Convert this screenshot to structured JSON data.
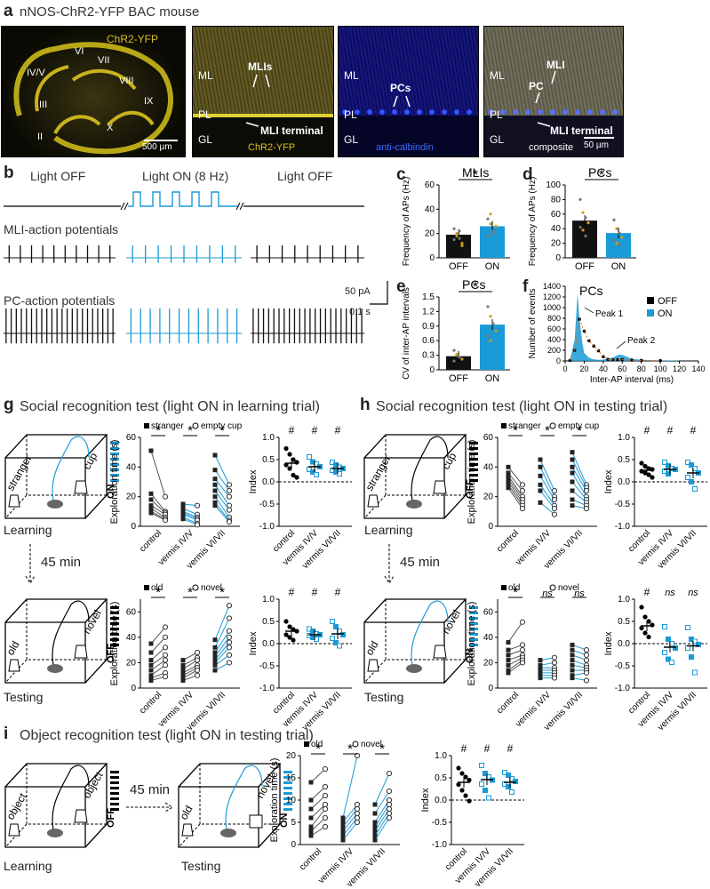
{
  "panel_a": {
    "label": "a",
    "title": "nNOS-ChR2-YFP BAC mouse",
    "sagittal": {
      "channel": "ChR2-YFP",
      "lobules": [
        "VI",
        "VII",
        "IV/V",
        "VIII",
        "III",
        "IX",
        "II",
        "X"
      ],
      "scale": "500 µm"
    },
    "layers": [
      "ML",
      "PL",
      "GL"
    ],
    "img1": {
      "arrow1": "MLIs",
      "arrow2": "MLI terminal",
      "channel": "ChR2-YFP"
    },
    "img2": {
      "arrow1": "PCs",
      "channel": "anti-calbindin"
    },
    "img3": {
      "arrow1": "MLI",
      "arrow2": "PC",
      "arrow3": "MLI terminal",
      "channel": "composite",
      "scale": "50 µm"
    },
    "colors": {
      "yfp": "#c8b418",
      "calbindin": "#2233ee"
    }
  },
  "panel_b": {
    "label": "b",
    "light_off_1": "Light OFF",
    "light_on": "Light ON (8 Hz)",
    "light_off_2": "Light OFF",
    "trace1": "MLI-action potentials",
    "trace2": "PC-action potentials",
    "scale_y": "50 pA",
    "scale_x": "0.1 s"
  },
  "panel_c": {
    "label": "c",
    "title": "MLIs",
    "ylabel": "Frequency of APs (Hz)",
    "sig": "*"
  },
  "panel_d": {
    "label": "d",
    "title": "PCs",
    "ylabel": "Frequency of APs (Hz)",
    "sig": "*"
  },
  "panel_e": {
    "label": "e",
    "title": "PCs",
    "ylabel": "CV of inter-AP intervals",
    "sig": "*"
  },
  "panel_f": {
    "label": "f",
    "title": "PCs",
    "ylabel": "Number of events",
    "xlabel": "Inter-AP interval (ms)",
    "legend": [
      "OFF",
      "ON"
    ],
    "peak1": "Peak 1",
    "peak2": "Peak 2"
  },
  "panel_g": {
    "label": "g",
    "title": "Social recognition test (light ON in learning trial)",
    "learning": "Learning",
    "testing": "Testing",
    "delay": "45 min",
    "stranger": "stranger",
    "cup": "cup",
    "old": "old",
    "novel": "novel",
    "on": "ON",
    "off": "OFF"
  },
  "panel_h": {
    "label": "h",
    "title": "Social recognition test (light ON in testing trial)",
    "learning": "Learning",
    "testing": "Testing",
    "delay": "45 min",
    "stranger": "stranger",
    "cup": "cup",
    "old": "old",
    "novel": "novel",
    "on": "ON",
    "off": "OFF"
  },
  "panel_i": {
    "label": "i",
    "title": "Object recognition test (light ON in testing trial)",
    "learning": "Learning",
    "testing": "Testing",
    "delay": "45 min",
    "object1": "object",
    "object2": "object",
    "old": "old",
    "novel": "novel",
    "on": "ON",
    "off": "OFF"
  },
  "legends": {
    "stranger_leg": "stranger",
    "cup_leg": "empty cup",
    "old_leg": "old",
    "novel_leg": "novel"
  },
  "axis_text": {
    "expl": "Exploration time (s)",
    "index": "Index",
    "groups": [
      "control",
      "vermis IV/V",
      "vermis VI/VII"
    ],
    "cond": [
      "OFF",
      "ON"
    ]
  },
  "chart_data": [
    {
      "id": "c",
      "type": "bar",
      "title": "MLIs",
      "categories": [
        "OFF",
        "ON"
      ],
      "values": [
        19,
        26
      ],
      "ylabel": "Frequency of APs (Hz)",
      "ylim": [
        0,
        60
      ],
      "yticks": [
        0,
        20,
        40,
        60
      ]
    },
    {
      "id": "d",
      "type": "bar",
      "title": "PCs",
      "categories": [
        "OFF",
        "ON"
      ],
      "values": [
        51,
        34
      ],
      "ylabel": "Frequency of APs (Hz)",
      "ylim": [
        0,
        100
      ],
      "yticks": [
        0,
        20,
        40,
        60,
        80,
        100
      ]
    },
    {
      "id": "e",
      "type": "bar",
      "title": "PCs",
      "categories": [
        "OFF",
        "ON"
      ],
      "values": [
        0.28,
        0.93
      ],
      "ylabel": "CV of inter-AP intervals",
      "ylim": [
        0,
        1.5
      ],
      "yticks": [
        0,
        0.3,
        0.6,
        0.9,
        1.2,
        1.5
      ]
    },
    {
      "id": "f",
      "type": "line",
      "title": "PCs",
      "xlabel": "Inter-AP interval (ms)",
      "ylabel": "Number of events",
      "xlim": [
        0,
        140
      ],
      "ylim": [
        0,
        1400
      ],
      "xticks": [
        0,
        20,
        40,
        60,
        80,
        100,
        120,
        140
      ],
      "yticks": [
        0,
        200,
        400,
        600,
        800,
        1000,
        1200,
        1400
      ],
      "series": [
        {
          "name": "OFF",
          "x": [
            5,
            10,
            15,
            20,
            25,
            30,
            35,
            40,
            45,
            50,
            55,
            60,
            70,
            80,
            100
          ],
          "y": [
            10,
            200,
            780,
            560,
            380,
            280,
            190,
            80,
            30,
            20,
            20,
            25,
            15,
            10,
            5
          ]
        },
        {
          "name": "ON",
          "x": [
            5,
            10,
            13,
            15,
            18,
            20,
            25,
            30,
            35,
            40,
            50,
            55,
            58,
            62,
            70,
            80,
            100,
            120
          ],
          "y": [
            20,
            400,
            1260,
            800,
            350,
            150,
            60,
            30,
            20,
            25,
            60,
            110,
            120,
            100,
            40,
            20,
            10,
            5
          ]
        }
      ]
    },
    {
      "id": "g_top_expl",
      "type": "scatter",
      "ylabel": "Exploration time (s)",
      "ylim": [
        0,
        60
      ],
      "groups": [
        "control",
        "vermis IV/V",
        "vermis VI/VII"
      ],
      "legend": [
        "stranger",
        "empty cup"
      ],
      "sig": [
        "*",
        "*",
        "*"
      ],
      "series": [
        {
          "name": "stranger",
          "values": [
            [
              51,
              22,
              18,
              14,
              12,
              10,
              9
            ],
            [
              15,
              12,
              10,
              9,
              8,
              6,
              5
            ],
            [
              48,
              38,
              32,
              28,
              24,
              20,
              16,
              14
            ]
          ]
        },
        {
          "name": "empty cup",
          "values": [
            [
              20,
              10,
              9,
              8,
              6,
              5,
              4
            ],
            [
              14,
              8,
              6,
              5,
              4,
              2,
              1
            ],
            [
              28,
              24,
              20,
              14,
              11,
              6,
              4,
              3
            ]
          ]
        }
      ]
    },
    {
      "id": "g_top_index",
      "type": "scatter",
      "ylabel": "Index",
      "ylim": [
        -1,
        1
      ],
      "groups": [
        "control",
        "vermis IV/V",
        "vermis VI/VII"
      ],
      "means": [
        0.42,
        0.34,
        0.3
      ],
      "sig": [
        "#",
        "#",
        "#"
      ],
      "values": [
        [
          0.75,
          0.62,
          0.5,
          0.44,
          0.38,
          0.3,
          0.15,
          0.1
        ],
        [
          0.56,
          0.45,
          0.4,
          0.34,
          0.28,
          0.22,
          0.16
        ],
        [
          0.44,
          0.38,
          0.33,
          0.3,
          0.26,
          0.22,
          0.18
        ]
      ]
    },
    {
      "id": "g_bot_expl",
      "type": "scatter",
      "ylabel": "Exploration time (s)",
      "ylim": [
        0,
        70
      ],
      "groups": [
        "control",
        "vermis IV/V",
        "vermis VI/VII"
      ],
      "legend": [
        "old",
        "novel"
      ],
      "sig": [
        "*",
        "*",
        "*"
      ],
      "series": [
        {
          "name": "old",
          "values": [
            [
              35,
              28,
              22,
              18,
              14,
              10,
              8,
              6
            ],
            [
              22,
              18,
              15,
              12,
              10,
              8,
              6
            ],
            [
              38,
              32,
              28,
              25,
              22,
              20,
              18,
              14
            ]
          ]
        },
        {
          "name": "novel",
          "values": [
            [
              48,
              40,
              32,
              26,
              22,
              18,
              12,
              9
            ],
            [
              28,
              24,
              22,
              18,
              16,
              14,
              10
            ],
            [
              65,
              55,
              45,
              40,
              36,
              32,
              26,
              20
            ]
          ]
        }
      ]
    },
    {
      "id": "g_bot_index",
      "type": "scatter",
      "ylabel": "Index",
      "ylim": [
        -1,
        1
      ],
      "groups": [
        "control",
        "vermis IV/V",
        "vermis VI/VII"
      ],
      "means": [
        0.28,
        0.2,
        0.22
      ],
      "sig": [
        "#",
        "#",
        "#"
      ],
      "values": [
        [
          0.5,
          0.38,
          0.32,
          0.28,
          0.2,
          0.14,
          0.08
        ],
        [
          0.33,
          0.28,
          0.22,
          0.2,
          0.18,
          0.14,
          0.1
        ],
        [
          0.5,
          0.38,
          0.28,
          0.2,
          0.12,
          0.02,
          -0.05
        ]
      ]
    },
    {
      "id": "h_top_expl",
      "type": "scatter",
      "ylabel": "Exploration time (s)",
      "ylim": [
        0,
        60
      ],
      "groups": [
        "control",
        "vermis IV/V",
        "vermis VI/VII"
      ],
      "legend": [
        "stranger",
        "empty cup"
      ],
      "sig": [
        "*",
        "*",
        "*"
      ],
      "series": [
        {
          "name": "stranger",
          "values": [
            [
              40,
              36,
              34,
              32,
              30,
              28,
              26
            ],
            [
              45,
              40,
              34,
              28,
              24,
              16
            ],
            [
              50,
              45,
              40,
              36,
              30,
              24,
              18,
              14
            ]
          ]
        },
        {
          "name": "empty cup",
          "values": [
            [
              28,
              24,
              20,
              18,
              16,
              14,
              12
            ],
            [
              24,
              20,
              18,
              14,
              12,
              8
            ],
            [
              28,
              26,
              24,
              20,
              18,
              16,
              14,
              12
            ]
          ]
        }
      ]
    },
    {
      "id": "h_top_index",
      "type": "scatter",
      "ylabel": "Index",
      "ylim": [
        -1,
        1
      ],
      "groups": [
        "control",
        "vermis IV/V",
        "vermis VI/VII"
      ],
      "means": [
        0.26,
        0.28,
        0.2
      ],
      "sig": [
        "#",
        "#",
        "#"
      ],
      "values": [
        [
          0.42,
          0.35,
          0.3,
          0.28,
          0.24,
          0.2,
          0.16,
          0.1
        ],
        [
          0.44,
          0.36,
          0.3,
          0.28,
          0.24,
          0.18
        ],
        [
          0.44,
          0.38,
          0.3,
          0.2,
          0.1,
          0.0,
          -0.16
        ]
      ]
    },
    {
      "id": "h_bot_expl",
      "type": "scatter",
      "ylabel": "Exploration time (s)",
      "ylim": [
        0,
        70
      ],
      "groups": [
        "control",
        "vermis IV/V",
        "vermis VI/VII"
      ],
      "legend": [
        "old",
        "novel"
      ],
      "sig": [
        "*",
        "ns",
        "ns"
      ],
      "series": [
        {
          "name": "old",
          "values": [
            [
              36,
              30,
              26,
              22,
              18,
              14,
              12,
              10
            ],
            [
              22,
              18,
              16,
              14,
              12,
              10,
              8
            ],
            [
              34,
              30,
              26,
              22,
              18,
              14,
              10,
              8
            ]
          ]
        },
        {
          "name": "novel",
          "values": [
            [
              52,
              34,
              30,
              26,
              24,
              22,
              20
            ],
            [
              24,
              20,
              16,
              14,
              12,
              10,
              8
            ],
            [
              30,
              26,
              22,
              18,
              16,
              14,
              12,
              6
            ]
          ]
        }
      ]
    },
    {
      "id": "h_bot_index",
      "type": "scatter",
      "ylabel": "Index",
      "ylim": [
        -1,
        1
      ],
      "groups": [
        "control",
        "vermis IV/V",
        "vermis VI/VII"
      ],
      "means": [
        0.4,
        -0.08,
        -0.05
      ],
      "sig": [
        "#",
        "ns",
        "ns"
      ],
      "values": [
        [
          0.82,
          0.6,
          0.5,
          0.42,
          0.35,
          0.24,
          0.15
        ],
        [
          0.38,
          0.1,
          0.0,
          -0.1,
          -0.2,
          -0.35,
          -0.42
        ],
        [
          0.36,
          0.1,
          0.05,
          -0.02,
          -0.1,
          -0.3,
          -0.65
        ]
      ]
    },
    {
      "id": "i_expl",
      "type": "scatter",
      "ylabel": "Exploration time (s)",
      "ylim": [
        0,
        20
      ],
      "yticks": [
        0,
        5,
        10,
        15,
        20
      ],
      "groups": [
        "control",
        "vermis IV/V",
        "vermis VI/VII"
      ],
      "legend": [
        "old",
        "novel"
      ],
      "sig": [
        "*",
        "*",
        "*"
      ],
      "series": [
        {
          "name": "old",
          "values": [
            [
              14,
              10,
              8,
              6,
              4,
              3,
              2
            ],
            [
              6,
              5,
              4,
              3,
              2,
              1
            ],
            [
              9,
              7,
              5,
              4,
              3,
              2,
              1
            ]
          ]
        },
        {
          "name": "novel",
          "values": [
            [
              17,
              13,
              11,
              9,
              8,
              6,
              4
            ],
            [
              20,
              9,
              8,
              7,
              6,
              5
            ],
            [
              16,
              12,
              10,
              9,
              8,
              7,
              6,
              5
            ]
          ]
        }
      ]
    },
    {
      "id": "i_index",
      "type": "scatter",
      "ylabel": "Index",
      "ylim": [
        -1,
        1
      ],
      "groups": [
        "control",
        "vermis IV/V",
        "vermis VI/VII"
      ],
      "means": [
        0.4,
        0.46,
        0.4
      ],
      "sig": [
        "#",
        "#",
        "#"
      ],
      "values": [
        [
          0.72,
          0.6,
          0.52,
          0.45,
          0.35,
          0.22,
          0.1,
          -0.02
        ],
        [
          0.78,
          0.6,
          0.52,
          0.45,
          0.36,
          0.22,
          0.05
        ],
        [
          0.62,
          0.56,
          0.48,
          0.42,
          0.36,
          0.3,
          0.18
        ]
      ]
    }
  ]
}
